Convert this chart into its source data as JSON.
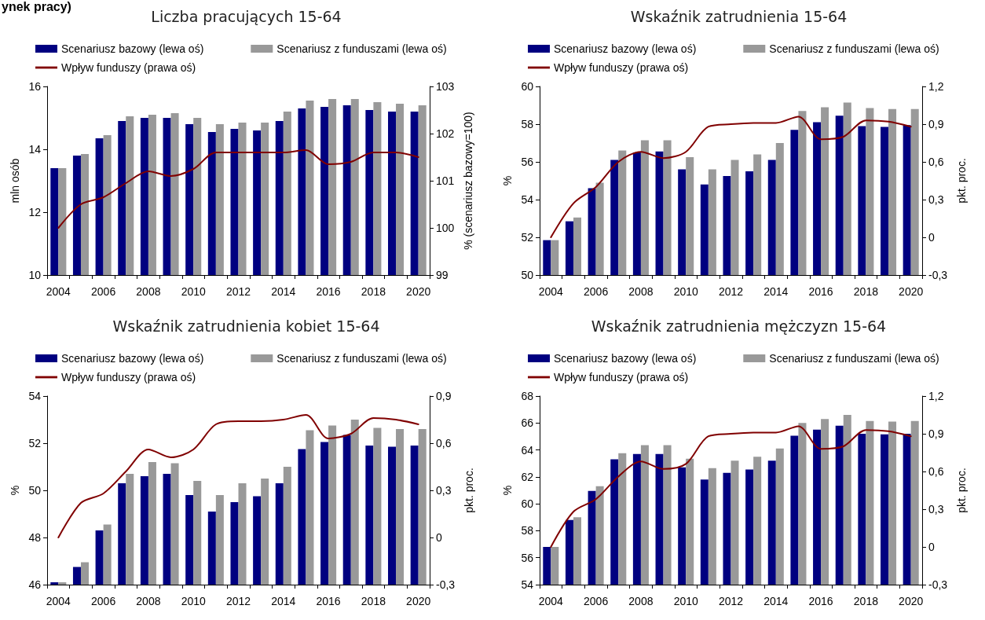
{
  "chart_data": [
    {
      "type": "bar",
      "title": "Liczba pracujących 15-64",
      "ylabel": "mln osób",
      "y2label": "% (scenariusz bazowy=100)",
      "annotations": [
        "ynek pracy)"
      ],
      "categories": [
        "2004",
        null,
        "2006",
        null,
        "2008",
        null,
        "2010",
        null,
        "2012",
        null,
        "2014",
        null,
        "2016",
        null,
        "2018",
        null,
        "2020"
      ],
      "series": [
        {
          "name": "Scenariusz bazowy (lewa oś)",
          "color": "#000080",
          "values": [
            13.4,
            13.8,
            14.35,
            14.9,
            15.0,
            15.0,
            14.8,
            14.55,
            14.65,
            14.6,
            14.9,
            15.3,
            15.35,
            15.4,
            15.25,
            15.2,
            15.2
          ]
        },
        {
          "name": "Scenariusz z funduszami (lewa oś)",
          "color": "#999999",
          "values": [
            13.4,
            13.85,
            14.45,
            15.05,
            15.1,
            15.15,
            15.0,
            14.8,
            14.85,
            14.85,
            15.2,
            15.55,
            15.6,
            15.6,
            15.5,
            15.45,
            15.4
          ]
        },
        {
          "name": "Wpływ funduszy (prawa oś)",
          "type": "line",
          "axis": "y2",
          "color": "#800000",
          "values": [
            100.0,
            100.5,
            100.65,
            100.95,
            101.2,
            101.1,
            101.25,
            101.6,
            101.6,
            101.6,
            101.6,
            101.65,
            101.35,
            101.4,
            101.6,
            101.6,
            101.5
          ]
        }
      ],
      "ylim": [
        10,
        16
      ],
      "yticks": [
        10,
        12,
        14,
        16
      ],
      "y2lim": [
        99,
        103
      ],
      "y2ticks": [
        99,
        100,
        101,
        102,
        103
      ],
      "legend": "top left",
      "grid": false,
      "marker": "none"
    },
    {
      "type": "bar",
      "title": "Wskaźnik zatrudnienia 15-64",
      "ylabel": "%",
      "y2label": "pkt. proc.",
      "categories": [
        "2004",
        null,
        "2006",
        null,
        "2008",
        null,
        "2010",
        null,
        "2012",
        null,
        "2014",
        null,
        "2016",
        null,
        "2018",
        null,
        "2020"
      ],
      "series": [
        {
          "name": "Scenariusz bazowy (lewa oś)",
          "color": "#000080",
          "values": [
            51.85,
            52.85,
            54.6,
            56.1,
            56.5,
            56.55,
            55.6,
            54.8,
            55.25,
            55.5,
            56.1,
            57.7,
            58.1,
            58.45,
            57.9,
            57.85,
            57.95
          ]
        },
        {
          "name": "Scenariusz z funduszami (lewa oś)",
          "color": "#999999",
          "values": [
            51.85,
            53.05,
            54.9,
            56.6,
            57.15,
            57.15,
            56.25,
            55.6,
            56.1,
            56.4,
            57.0,
            58.7,
            58.9,
            59.15,
            58.85,
            58.8,
            58.8
          ]
        },
        {
          "name": "Wpływ funduszy (prawa oś)",
          "type": "line",
          "axis": "y2",
          "color": "#800000",
          "values": [
            0,
            0.27,
            0.4,
            0.6,
            0.68,
            0.63,
            0.68,
            0.88,
            0.9,
            0.91,
            0.91,
            0.96,
            0.78,
            0.8,
            0.93,
            0.92,
            0.88
          ]
        }
      ],
      "ylim": [
        50,
        60
      ],
      "yticks": [
        50,
        52,
        54,
        56,
        58,
        60
      ],
      "y2lim": [
        -0.3,
        1.2
      ],
      "y2ticks": [
        {
          "value": -0.3,
          "label": "-0,3"
        },
        0,
        {
          "value": 0.3,
          "label": "0,3"
        },
        {
          "value": 0.6,
          "label": "0,6"
        },
        {
          "value": 0.9,
          "label": "0,9"
        },
        {
          "value": 1.2,
          "label": "1,2"
        }
      ],
      "legend": "top left",
      "grid": false,
      "marker": "none"
    },
    {
      "type": "bar",
      "title": "Wskaźnik zatrudnienia kobiet 15-64",
      "ylabel": "%",
      "y2label": "pkt. proc.",
      "categories": [
        "2004",
        null,
        "2006",
        null,
        "2008",
        null,
        "2010",
        null,
        "2012",
        null,
        "2014",
        null,
        "2016",
        null,
        "2018",
        null,
        "2020"
      ],
      "series": [
        {
          "name": "Scenariusz bazowy (lewa oś)",
          "color": "#000080",
          "values": [
            46.1,
            46.75,
            48.3,
            50.3,
            50.6,
            50.7,
            49.8,
            49.1,
            49.5,
            49.75,
            50.3,
            51.75,
            52.05,
            52.35,
            51.9,
            51.85,
            51.9
          ]
        },
        {
          "name": "Scenariusz z funduszami (lewa oś)",
          "color": "#999999",
          "values": [
            46.1,
            46.95,
            48.55,
            50.7,
            51.2,
            51.15,
            50.4,
            49.8,
            50.3,
            50.5,
            51.0,
            52.55,
            52.75,
            53.0,
            52.65,
            52.6,
            52.6
          ]
        },
        {
          "name": "Wpływ funduszy (prawa oś)",
          "type": "line",
          "axis": "y2",
          "color": "#800000",
          "values": [
            0,
            0.22,
            0.28,
            0.42,
            0.56,
            0.51,
            0.56,
            0.72,
            0.74,
            0.74,
            0.75,
            0.78,
            0.63,
            0.66,
            0.76,
            0.75,
            0.72
          ]
        }
      ],
      "ylim": [
        46,
        54
      ],
      "yticks": [
        46,
        48,
        50,
        52,
        54
      ],
      "y2lim": [
        -0.3,
        0.9
      ],
      "y2ticks": [
        {
          "value": -0.3,
          "label": "-0,3"
        },
        0,
        {
          "value": 0.3,
          "label": "0,3"
        },
        {
          "value": 0.6,
          "label": "0,6"
        },
        {
          "value": 0.9,
          "label": "0,9"
        }
      ],
      "legend": "top left",
      "grid": false,
      "marker": "none"
    },
    {
      "type": "bar",
      "title": "Wskaźnik zatrudnienia mężczyzn 15-64",
      "ylabel": "%",
      "y2label": "pkt. proc.",
      "categories": [
        "2004",
        null,
        "2006",
        null,
        "2008",
        null,
        "2010",
        null,
        "2012",
        null,
        "2014",
        null,
        "2016",
        null,
        "2018",
        null,
        "2020"
      ],
      "series": [
        {
          "name": "Scenariusz bazowy (lewa oś)",
          "color": "#000080",
          "values": [
            56.8,
            58.8,
            60.95,
            63.3,
            63.7,
            63.7,
            62.7,
            61.8,
            62.3,
            62.55,
            63.2,
            65.05,
            65.5,
            65.8,
            65.2,
            65.15,
            65.2
          ]
        },
        {
          "name": "Scenariusz z funduszami (lewa oś)",
          "color": "#999999",
          "values": [
            56.8,
            59.0,
            61.3,
            63.75,
            64.35,
            64.35,
            63.35,
            62.65,
            63.2,
            63.5,
            64.1,
            66.0,
            66.3,
            66.6,
            66.15,
            66.1,
            66.15
          ]
        },
        {
          "name": "Wpływ funduszy (prawa oś)",
          "type": "line",
          "axis": "y2",
          "color": "#800000",
          "values": [
            0,
            0.28,
            0.38,
            0.56,
            0.68,
            0.62,
            0.66,
            0.88,
            0.9,
            0.91,
            0.91,
            0.96,
            0.78,
            0.8,
            0.93,
            0.92,
            0.88
          ]
        }
      ],
      "ylim": [
        54,
        68
      ],
      "yticks": [
        54,
        56,
        58,
        60,
        62,
        64,
        66,
        68
      ],
      "y2lim": [
        -0.3,
        1.2
      ],
      "y2ticks": [
        {
          "value": -0.3,
          "label": "-0,3"
        },
        0,
        {
          "value": 0.3,
          "label": "0,3"
        },
        {
          "value": 0.6,
          "label": "0,6"
        },
        {
          "value": 0.9,
          "label": "0,9"
        },
        {
          "value": 1.2,
          "label": "1,2"
        }
      ],
      "legend": "top left",
      "grid": false,
      "marker": "none"
    }
  ]
}
